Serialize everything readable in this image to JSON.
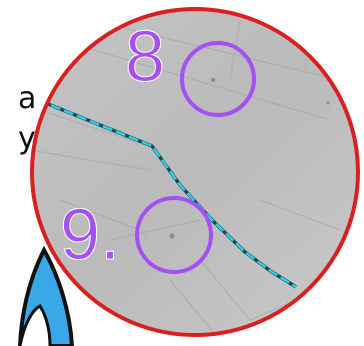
{
  "fragments": {
    "left_text_a": "a",
    "left_text_b": "y"
  },
  "markers": [
    {
      "label": "8"
    },
    {
      "label": "9."
    }
  ],
  "colors": {
    "frame": "#d9201f",
    "marker": "#a64ff2",
    "path_line": "#27d4e6",
    "terrain": "#bdbdbd",
    "shape_fill": "#39a8e8",
    "shape_outline": "#111111"
  },
  "icons": {
    "marker_ring": "circle-icon",
    "blue_shape": "blue-blob-shape"
  }
}
